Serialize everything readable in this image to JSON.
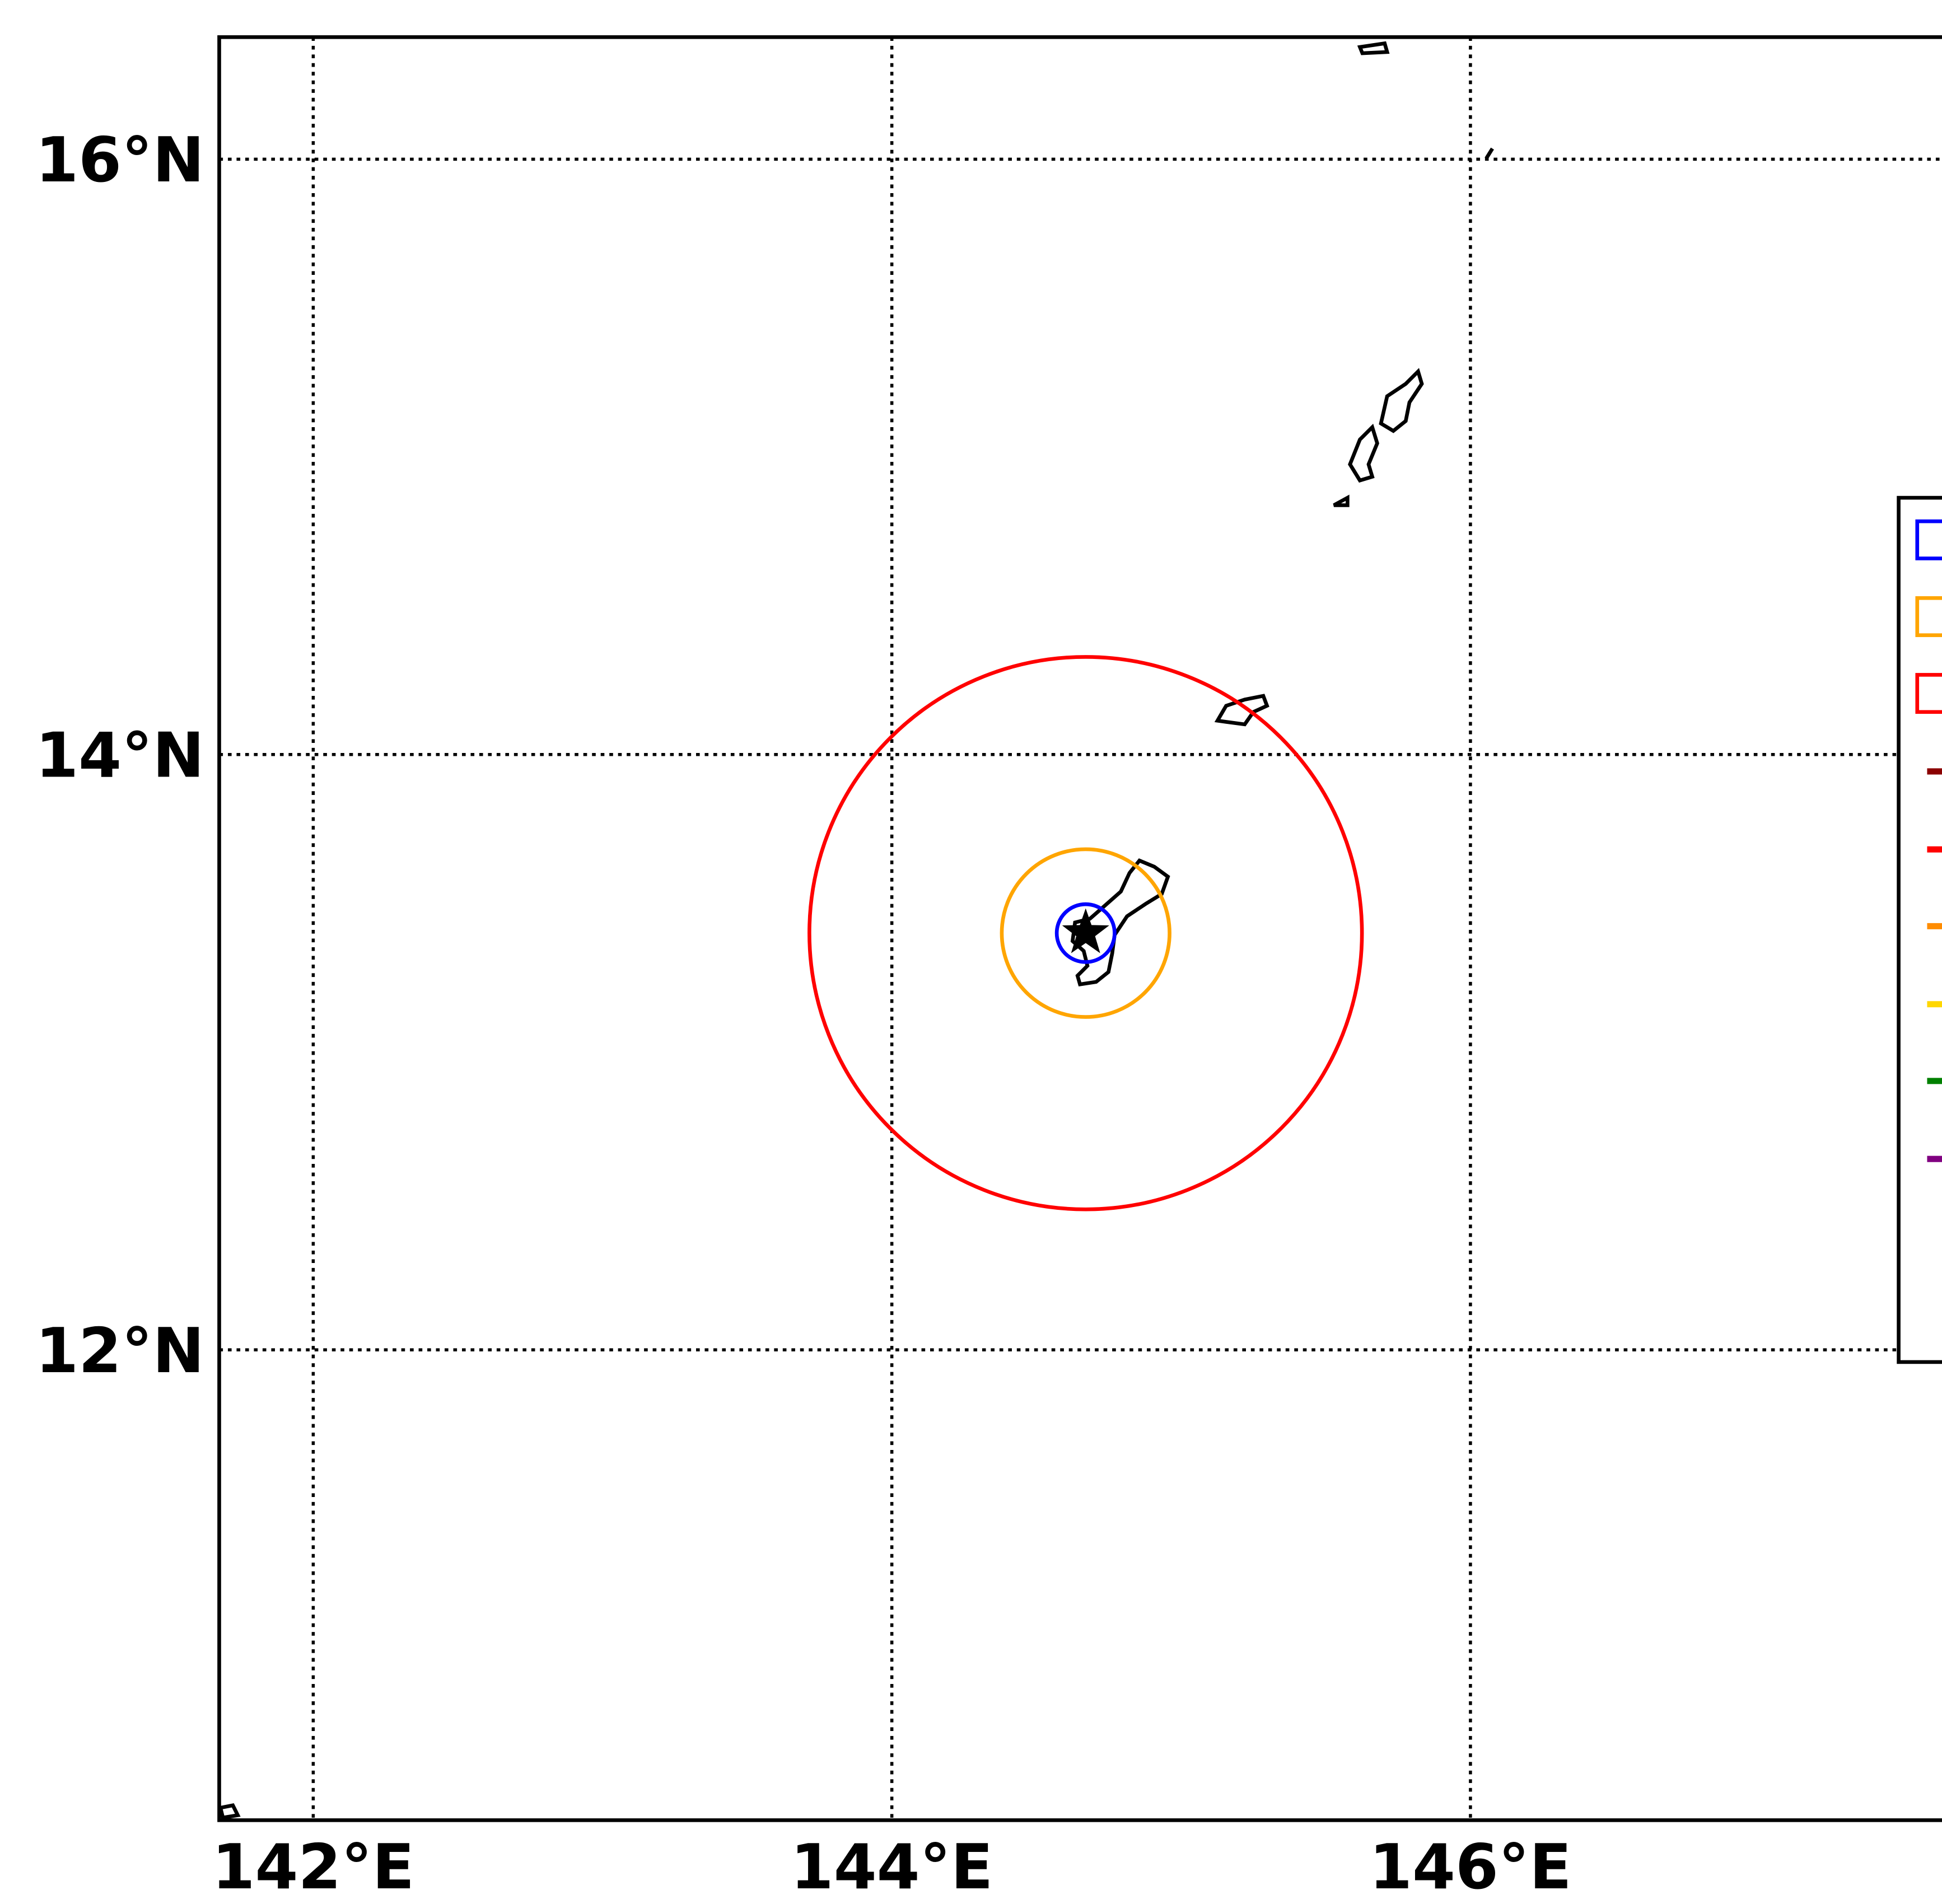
{
  "chart_data": {
    "type": "map",
    "xlim": [
      141.675,
      147.63
    ],
    "ylim": [
      10.42,
      16.41
    ],
    "xticks": [
      {
        "value": 142,
        "label": "142°E"
      },
      {
        "value": 144,
        "label": "144°E"
      },
      {
        "value": 146,
        "label": "146°E"
      }
    ],
    "yticks": [
      {
        "value": 12,
        "label": "12°N"
      },
      {
        "value": 14,
        "label": "14°N"
      },
      {
        "value": 16,
        "label": "16°N"
      }
    ],
    "grid": true,
    "center": {
      "lon": 144.67,
      "lat": 13.4
    },
    "series": [
      {
        "color": "#0000ff",
        "radius": 0.1
      },
      {
        "color": "#ffa500",
        "radius": 0.29
      },
      {
        "color": "#ff0000",
        "radius": 0.955
      }
    ]
  }
}
